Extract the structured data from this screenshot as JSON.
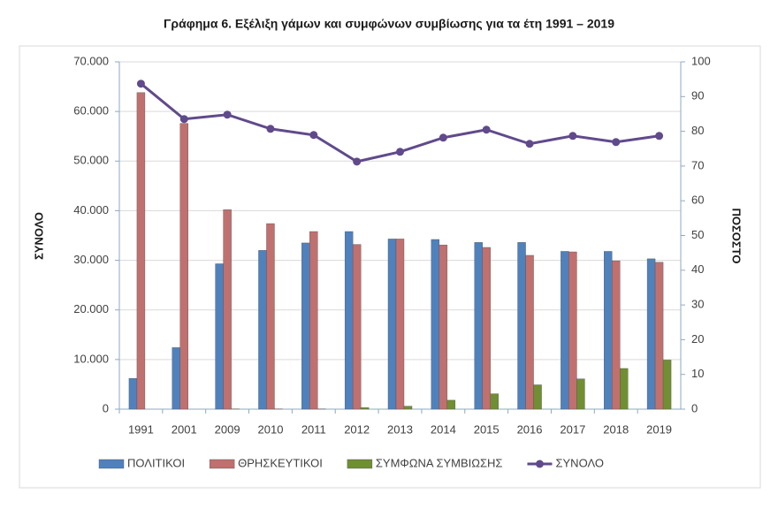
{
  "chart_data": {
    "type": "bar",
    "title": "Γράφημα 6. Εξέλιξη γάμων και συμφώνων συμβίωσης για τα έτη 1991 – 2019",
    "y_label": "ΣΥΝΟΛΟ",
    "y2_label": "ΠΟΣΟΣΤΟ",
    "categories": [
      "1991",
      "2001",
      "2009",
      "2010",
      "2011",
      "2012",
      "2013",
      "2014",
      "2015",
      "2016",
      "2017",
      "2018",
      "2019"
    ],
    "series": [
      {
        "name": "ΠΟΛΙΤΙΚΟΙ",
        "type": "bar",
        "color": "#4f81bd",
        "values": [
          6200,
          12400,
          29300,
          32000,
          33500,
          35800,
          34300,
          34200,
          33600,
          33600,
          31800,
          31800,
          30300
        ]
      },
      {
        "name": "ΘΡΗΣΚΕΥΤΙΚΟΙ",
        "type": "bar",
        "color": "#c0706e",
        "values": [
          63800,
          57600,
          40200,
          37400,
          35800,
          33200,
          34300,
          33100,
          32600,
          31000,
          31700,
          29900,
          29600
        ]
      },
      {
        "name": "ΣΥΜΦΩΝΑ ΣΥΜΒΙΩΣΗΣ",
        "type": "bar",
        "color": "#6f8f32",
        "values": [
          null,
          null,
          50,
          50,
          50,
          300,
          600,
          1800,
          3100,
          4900,
          6100,
          8200,
          9900
        ]
      },
      {
        "name": "ΣΥΝΟΛΟ",
        "type": "line",
        "color": "#604a8b",
        "values": [
          65600,
          58470,
          59360,
          56500,
          55260,
          49900,
          51870,
          54720,
          56330,
          53480,
          55080,
          53830,
          55080
        ]
      }
    ],
    "ylim": [
      0,
      70000
    ],
    "yticks": [
      0,
      {
        "value": 10000,
        "label": "10.000"
      },
      {
        "value": 20000,
        "label": "20.000"
      },
      {
        "value": 30000,
        "label": "30.000"
      },
      {
        "value": 40000,
        "label": "40.000"
      },
      {
        "value": 50000,
        "label": "50.000"
      },
      {
        "value": 60000,
        "label": "60.000"
      },
      {
        "value": 70000,
        "label": "70.000"
      }
    ],
    "y2lim": [
      0,
      100
    ],
    "y2ticks": [
      0,
      10,
      20,
      30,
      40,
      50,
      60,
      70,
      80,
      90,
      100
    ],
    "grid": true
  }
}
